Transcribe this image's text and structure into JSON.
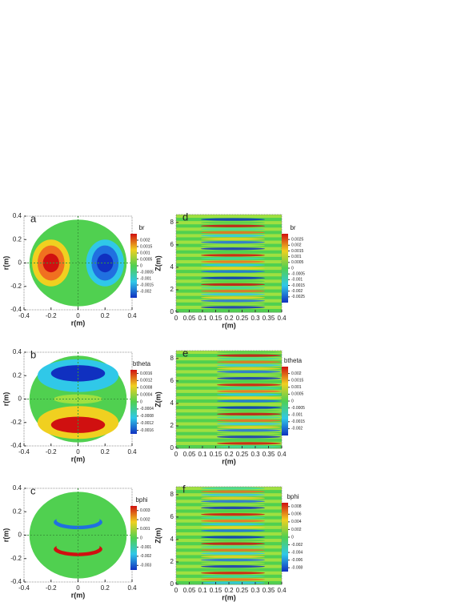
{
  "chart_data": [
    {
      "type": "contour",
      "label": "a",
      "xlabel": "r(m)",
      "ylabel": "r(m)",
      "xlim": [
        -0.4,
        0.4
      ],
      "ylim": [
        -0.4,
        0.4
      ],
      "xticks": [
        -0.4,
        -0.2,
        0,
        0.2,
        0.4
      ],
      "yticks": [
        -0.4,
        -0.2,
        0,
        0.2,
        0.4
      ],
      "colorbar": {
        "title": "br",
        "clim": [
          -0.0025,
          0.0025
        ],
        "ticks": [
          0.002,
          0.0015,
          0.001,
          0.0005,
          0,
          -0.0005,
          -0.001,
          -0.0015,
          -0.002
        ]
      }
    },
    {
      "type": "contour",
      "label": "b",
      "xlabel": "r(m)",
      "ylabel": "r(m)",
      "xlim": [
        -0.4,
        0.4
      ],
      "ylim": [
        -0.4,
        0.4
      ],
      "xticks": [
        -0.4,
        -0.2,
        0,
        0.2,
        0.4
      ],
      "yticks": [
        -0.4,
        -0.2,
        0,
        0.2,
        0.4
      ],
      "colorbar": {
        "title": "btheta",
        "clim": [
          -0.0018,
          0.0018
        ],
        "ticks": [
          0.0016,
          0.0012,
          0.0008,
          0.0004,
          0,
          -0.0004,
          -0.0008,
          -0.0012,
          -0.0016
        ]
      }
    },
    {
      "type": "contour",
      "label": "c",
      "xlabel": "r(m)",
      "ylabel": "r(m)",
      "xlim": [
        -0.4,
        0.4
      ],
      "ylim": [
        -0.4,
        0.4
      ],
      "xticks": [
        -0.4,
        -0.2,
        0,
        0.2,
        0.4
      ],
      "yticks": [
        -0.4,
        -0.2,
        0,
        0.2,
        0.4
      ],
      "colorbar": {
        "title": "bphi",
        "clim": [
          -0.0035,
          0.0035
        ],
        "ticks": [
          0.003,
          0.002,
          0.001,
          0,
          -0.001,
          -0.002,
          -0.003
        ]
      }
    },
    {
      "type": "contour",
      "label": "d",
      "xlabel": "r(m)",
      "ylabel": "Z(m)",
      "xlim": [
        0,
        0.4
      ],
      "ylim": [
        0,
        8.7
      ],
      "xticks": [
        0,
        0.05,
        0.1,
        0.15,
        0.2,
        0.25,
        0.3,
        0.35,
        0.4
      ],
      "yticks": [
        0,
        2,
        4,
        6,
        8
      ],
      "colorbar": {
        "title": "br",
        "clim": [
          -0.003,
          0.003
        ],
        "ticks": [
          0.0025,
          0.002,
          0.0015,
          0.001,
          0.0005,
          0,
          -0.0005,
          -0.001,
          -0.0015,
          -0.002,
          -0.0025
        ]
      }
    },
    {
      "type": "contour",
      "label": "e",
      "xlabel": "r(m)",
      "ylabel": "Z(m)",
      "xlim": [
        0,
        0.4
      ],
      "ylim": [
        0,
        8.7
      ],
      "xticks": [
        0,
        0.05,
        0.1,
        0.15,
        0.2,
        0.25,
        0.3,
        0.35,
        0.4
      ],
      "yticks": [
        0,
        2,
        4,
        6,
        8
      ],
      "colorbar": {
        "title": "btheta",
        "clim": [
          -0.0025,
          0.0025
        ],
        "ticks": [
          0.002,
          0.0015,
          0.001,
          0.0005,
          0,
          -0.0005,
          -0.001,
          -0.0015,
          -0.002
        ]
      }
    },
    {
      "type": "contour",
      "label": "f",
      "xlabel": "r(m)",
      "ylabel": "Z(m)",
      "xlim": [
        0,
        0.4
      ],
      "ylim": [
        0,
        8.7
      ],
      "xticks": [
        0,
        0.05,
        0.1,
        0.15,
        0.2,
        0.25,
        0.3,
        0.35,
        0.4
      ],
      "yticks": [
        0,
        2,
        4,
        6,
        8
      ],
      "colorbar": {
        "title": "bphi",
        "clim": [
          -0.009,
          0.009
        ],
        "ticks": [
          0.008,
          0.006,
          0.004,
          0.002,
          0,
          -0.002,
          -0.004,
          -0.006,
          -0.008
        ]
      }
    }
  ]
}
